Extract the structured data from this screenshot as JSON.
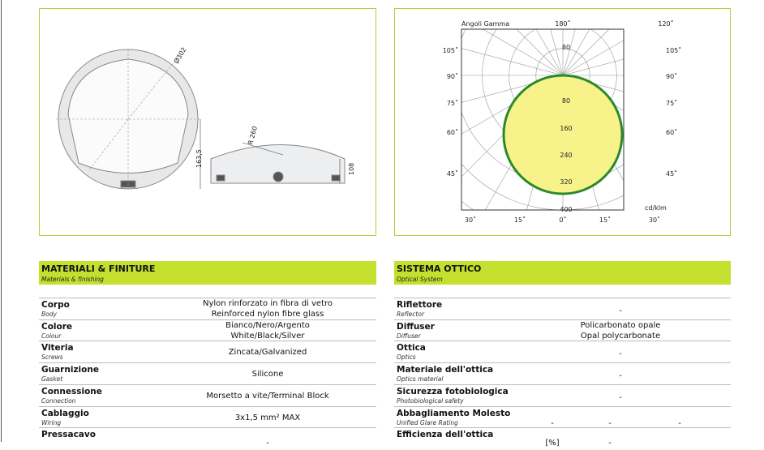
{
  "drawing": {
    "labels": [
      "Ø302",
      "163,5",
      "R 260",
      "108"
    ]
  },
  "polar": {
    "title": "Angoli Gamma",
    "top_labels": [
      "180˚",
      "120˚"
    ],
    "left_labels": [
      "105˚",
      "90˚",
      "75˚",
      "60˚",
      "45˚"
    ],
    "right_labels": [
      "105˚",
      "90˚",
      "75˚",
      "60˚",
      "45˚"
    ],
    "bottom_labels": [
      "30˚",
      "15˚",
      "0˚",
      "15˚",
      "30˚"
    ],
    "radial_labels": [
      "80",
      "80",
      "160",
      "240",
      "320",
      "400"
    ],
    "unit": "cd/klm"
  },
  "materials": {
    "title": "MATERIALI & FINITURE",
    "subtitle": "Materials & finishing",
    "rows": [
      {
        "label": "Corpo",
        "sublabel": "Body",
        "values": [
          "Nylon rinforzato in fibra di vetro",
          "Reinforced nylon fibre glass"
        ]
      },
      {
        "label": "Colore",
        "sublabel": "Colour",
        "values": [
          "Bianco/Nero/Argento",
          "White/Black/Silver"
        ]
      },
      {
        "label": "Viteria",
        "sublabel": "Screws",
        "values": [
          "Zincata/Galvanized"
        ]
      },
      {
        "label": "Guarnizione",
        "sublabel": "Gasket",
        "values": [
          "Silicone"
        ]
      },
      {
        "label": "Connessione",
        "sublabel": "Connection",
        "values": [
          "Morsetto a vite/Terminal Block"
        ]
      },
      {
        "label": "Cablaggio",
        "sublabel": "Wiring",
        "values": [
          "3x1,5 mm² MAX"
        ]
      },
      {
        "label": "Pressacavo",
        "sublabel": "",
        "values": [
          "-"
        ]
      }
    ]
  },
  "optics": {
    "title": "SISTEMA OTTICO",
    "subtitle": "Optical System",
    "rows": [
      {
        "label": "Riflettore",
        "sublabel": "Reflector",
        "values": [
          "-"
        ]
      },
      {
        "label": "Diffuser",
        "sublabel": "Diffuser",
        "values": [
          "Policarbonato opale",
          "Opal polycarbonate"
        ]
      },
      {
        "label": "Ottica",
        "sublabel": "Optics",
        "values": [
          "-"
        ]
      },
      {
        "label": "Materiale dell'ottica",
        "sublabel": "Optics material",
        "values": [
          "-"
        ]
      },
      {
        "label": "Sicurezza fotobiologica",
        "sublabel": "Photobiological  safety",
        "values": [
          "-"
        ]
      },
      {
        "label": "Abbagliamento Molesto",
        "sublabel": "Unified Glare Rating",
        "columns": [
          "-",
          "-",
          "-"
        ]
      },
      {
        "label": "Efficienza dell'ottica",
        "sublabel": "",
        "columns": [
          "[%]",
          "-"
        ]
      }
    ]
  }
}
